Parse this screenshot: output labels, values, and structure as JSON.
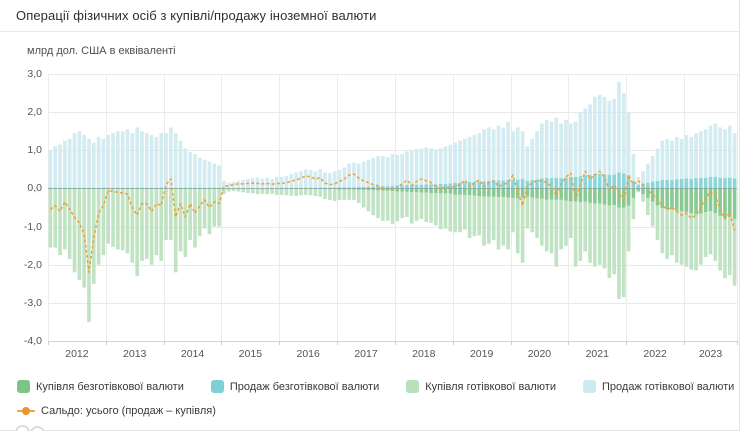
{
  "chart_data": {
    "type": "bar",
    "subtype": "stacked-bars-with-line",
    "title": "Операції фізичних осіб з купівлі/продажу іноземної валюти",
    "ylabel": "млрд дол. США в еквіваленті",
    "frequency": "monthly",
    "start_month": "2012-01",
    "end_month": "2023-11",
    "ylim": [
      -4.0,
      3.0
    ],
    "grid": true,
    "legend_position": "bottom",
    "y_tick_values": [
      3,
      2,
      1,
      0,
      -1,
      -2,
      -3,
      -4
    ],
    "y_tick_labels": [
      "3,0",
      "2,0",
      "1,0",
      "0,0",
      "-1,0",
      "-2,0",
      "-3,0",
      "-4,0"
    ],
    "x_year_labels": [
      "2012",
      "2013",
      "2014",
      "2015",
      "2016",
      "2017",
      "2018",
      "2019",
      "2020",
      "2021",
      "2022",
      "2023"
    ],
    "series": [
      {
        "name": "Купівля безготівкової валюти",
        "type": "bar",
        "stack": "purchase",
        "color": "#7cc487",
        "values": [
          -0.02,
          -0.02,
          -0.02,
          -0.02,
          -0.02,
          -0.02,
          -0.02,
          -0.02,
          -0.02,
          -0.02,
          -0.02,
          -0.02,
          -0.02,
          -0.02,
          -0.02,
          -0.02,
          -0.02,
          -0.02,
          -0.02,
          -0.02,
          -0.02,
          -0.02,
          -0.02,
          -0.02,
          -0.02,
          -0.02,
          -0.02,
          -0.02,
          -0.02,
          -0.02,
          -0.02,
          -0.02,
          -0.02,
          -0.02,
          -0.02,
          -0.02,
          -0.01,
          -0.01,
          -0.01,
          -0.01,
          -0.01,
          -0.01,
          -0.01,
          -0.01,
          -0.01,
          -0.01,
          -0.01,
          -0.01,
          -0.02,
          -0.02,
          -0.02,
          -0.02,
          -0.02,
          -0.02,
          -0.02,
          -0.02,
          -0.02,
          -0.02,
          -0.02,
          -0.02,
          -0.03,
          -0.03,
          -0.03,
          -0.03,
          -0.04,
          -0.04,
          -0.05,
          -0.05,
          -0.06,
          -0.06,
          -0.06,
          -0.07,
          -0.08,
          -0.08,
          -0.09,
          -0.1,
          -0.1,
          -0.11,
          -0.11,
          -0.12,
          -0.12,
          -0.13,
          -0.13,
          -0.14,
          -0.16,
          -0.16,
          -0.17,
          -0.18,
          -0.19,
          -0.2,
          -0.21,
          -0.22,
          -0.22,
          -0.23,
          -0.23,
          -0.24,
          -0.25,
          -0.26,
          -0.24,
          -0.22,
          -0.24,
          -0.26,
          -0.27,
          -0.3,
          -0.29,
          -0.3,
          -0.3,
          -0.32,
          -0.34,
          -0.34,
          -0.36,
          -0.35,
          -0.38,
          -0.4,
          -0.4,
          -0.42,
          -0.45,
          -0.44,
          -0.5,
          -0.5,
          -0.45,
          -0.25,
          -0.06,
          -0.15,
          -0.25,
          -0.35,
          -0.45,
          -0.52,
          -0.55,
          -0.55,
          -0.58,
          -0.6,
          -0.62,
          -0.65,
          -0.68,
          -0.66,
          -0.62,
          -0.6,
          -0.65,
          -0.72,
          -0.78,
          -0.75,
          -0.8
        ]
      },
      {
        "name": "Продаж безготівкової валюти",
        "type": "bar",
        "stack": "sale",
        "color": "#7fd0d4",
        "values": [
          0.02,
          0.02,
          0.02,
          0.02,
          0.02,
          0.02,
          0.02,
          0.02,
          0.02,
          0.02,
          0.02,
          0.02,
          0.02,
          0.02,
          0.02,
          0.02,
          0.02,
          0.02,
          0.02,
          0.02,
          0.02,
          0.02,
          0.02,
          0.02,
          0.02,
          0.02,
          0.02,
          0.02,
          0.02,
          0.02,
          0.02,
          0.02,
          0.02,
          0.02,
          0.02,
          0.02,
          0.01,
          0.01,
          0.01,
          0.01,
          0.01,
          0.01,
          0.01,
          0.01,
          0.01,
          0.01,
          0.01,
          0.01,
          0.02,
          0.02,
          0.02,
          0.02,
          0.02,
          0.02,
          0.02,
          0.02,
          0.02,
          0.02,
          0.02,
          0.02,
          0.03,
          0.03,
          0.03,
          0.03,
          0.04,
          0.04,
          0.05,
          0.05,
          0.06,
          0.06,
          0.06,
          0.07,
          0.08,
          0.08,
          0.09,
          0.09,
          0.1,
          0.1,
          0.11,
          0.11,
          0.11,
          0.12,
          0.12,
          0.13,
          0.15,
          0.15,
          0.16,
          0.17,
          0.18,
          0.18,
          0.19,
          0.2,
          0.2,
          0.21,
          0.21,
          0.22,
          0.22,
          0.23,
          0.25,
          0.2,
          0.22,
          0.24,
          0.26,
          0.28,
          0.27,
          0.28,
          0.27,
          0.28,
          0.3,
          0.3,
          0.32,
          0.34,
          0.35,
          0.38,
          0.38,
          0.37,
          0.36,
          0.37,
          0.42,
          0.4,
          0.35,
          0.2,
          0.1,
          0.12,
          0.15,
          0.18,
          0.2,
          0.22,
          0.23,
          0.22,
          0.24,
          0.25,
          0.26,
          0.25,
          0.27,
          0.28,
          0.28,
          0.3,
          0.3,
          0.28,
          0.27,
          0.28,
          0.26
        ]
      },
      {
        "name": "Купівля готівкової валюти",
        "type": "bar",
        "stack": "purchase",
        "color": "#b9e0bd",
        "values": [
          -1.53,
          -1.53,
          -1.73,
          -1.58,
          -1.83,
          -2.18,
          -2.38,
          -2.58,
          -3.48,
          -2.48,
          -1.98,
          -1.73,
          -1.43,
          -1.51,
          -1.58,
          -1.6,
          -1.68,
          -1.93,
          -2.28,
          -1.88,
          -1.83,
          -1.98,
          -1.73,
          -1.88,
          -1.33,
          -1.33,
          -2.18,
          -1.63,
          -1.78,
          -1.33,
          -1.53,
          -1.23,
          -1.03,
          -1.18,
          -0.98,
          -0.98,
          -0.14,
          -0.07,
          -0.06,
          -0.07,
          -0.09,
          -0.11,
          -0.12,
          -0.14,
          -0.13,
          -0.14,
          -0.13,
          -0.16,
          -0.15,
          -0.16,
          -0.17,
          -0.18,
          -0.16,
          -0.15,
          -0.16,
          -0.18,
          -0.2,
          -0.26,
          -0.28,
          -0.31,
          -0.27,
          -0.27,
          -0.27,
          -0.27,
          -0.34,
          -0.46,
          -0.55,
          -0.65,
          -0.72,
          -0.79,
          -0.79,
          -0.86,
          -0.78,
          -0.7,
          -0.66,
          -0.82,
          -0.75,
          -0.69,
          -0.77,
          -0.78,
          -0.85,
          -0.94,
          -0.92,
          -0.99,
          -0.99,
          -0.99,
          -0.91,
          -1.12,
          -1.06,
          -1.03,
          -1.29,
          -1.23,
          -1.13,
          -1.37,
          -1.27,
          -1.36,
          -0.9,
          -1.44,
          -1.71,
          -0.83,
          -0.91,
          -1.04,
          -1.23,
          -1.35,
          -1.41,
          -1.75,
          -1.3,
          -1.18,
          -0.96,
          -1.71,
          -1.54,
          -1.3,
          -1.57,
          -1.65,
          -1.6,
          -1.68,
          -1.9,
          -1.81,
          -2.4,
          -2.35,
          -1.2,
          -0.55,
          -0.04,
          -0.2,
          -0.45,
          -0.65,
          -0.9,
          -1.18,
          -1.3,
          -1.2,
          -1.37,
          -1.4,
          -1.43,
          -1.48,
          -1.47,
          -1.34,
          -1.18,
          -1.13,
          -1.25,
          -1.43,
          -1.57,
          -1.52,
          -1.75
        ]
      },
      {
        "name": "Продаж готівкової валюти",
        "type": "bar",
        "stack": "sale",
        "color": "#cdeaf0",
        "values": [
          0.98,
          1.08,
          1.13,
          1.23,
          1.28,
          1.43,
          1.48,
          1.38,
          1.28,
          1.18,
          1.33,
          1.28,
          1.38,
          1.43,
          1.48,
          1.48,
          1.53,
          1.43,
          1.58,
          1.48,
          1.43,
          1.38,
          1.33,
          1.43,
          1.43,
          1.58,
          1.43,
          1.23,
          1.03,
          0.93,
          0.88,
          0.78,
          0.73,
          0.68,
          0.63,
          0.58,
          0.19,
          0.14,
          0.16,
          0.19,
          0.21,
          0.24,
          0.26,
          0.27,
          0.25,
          0.27,
          0.24,
          0.29,
          0.28,
          0.31,
          0.36,
          0.4,
          0.43,
          0.48,
          0.46,
          0.43,
          0.48,
          0.4,
          0.38,
          0.43,
          0.45,
          0.52,
          0.62,
          0.65,
          0.61,
          0.66,
          0.7,
          0.75,
          0.79,
          0.79,
          0.76,
          0.83,
          0.8,
          0.82,
          0.88,
          0.91,
          0.93,
          0.95,
          0.97,
          0.94,
          0.91,
          0.93,
          0.98,
          1.02,
          1.05,
          1.1,
          1.14,
          1.18,
          1.22,
          1.27,
          1.36,
          1.4,
          1.35,
          1.44,
          1.39,
          1.53,
          1.28,
          1.37,
          1.25,
          0.9,
          1.08,
          1.26,
          1.44,
          1.52,
          1.48,
          1.57,
          1.43,
          1.52,
          1.4,
          1.45,
          1.68,
          1.76,
          1.85,
          2.02,
          2.07,
          2.03,
          1.94,
          1.98,
          2.38,
          2.1,
          1.65,
          0.7,
          0.2,
          0.33,
          0.5,
          0.67,
          0.85,
          1.03,
          1.07,
          1.03,
          1.11,
          1.05,
          1.14,
          1.1,
          1.18,
          1.22,
          1.27,
          1.35,
          1.4,
          1.32,
          1.28,
          1.37,
          1.19
        ]
      },
      {
        "name": "Сальдо: усього (продаж – купівля)",
        "type": "line",
        "dashed": true,
        "color": "#eda13a",
        "values": [
          -0.55,
          -0.45,
          -0.6,
          -0.35,
          -0.55,
          -0.75,
          -0.9,
          -1.2,
          -2.2,
          -1.3,
          -0.65,
          -0.45,
          -0.05,
          -0.08,
          -0.1,
          -0.12,
          -0.15,
          -0.5,
          -0.7,
          -0.4,
          -0.4,
          -0.6,
          -0.4,
          -0.45,
          0.1,
          0.25,
          -0.75,
          -0.4,
          -0.75,
          -0.4,
          -0.65,
          -0.45,
          -0.3,
          -0.5,
          -0.35,
          -0.4,
          0.05,
          0.07,
          0.1,
          0.12,
          0.12,
          0.13,
          0.14,
          0.13,
          0.12,
          0.13,
          0.11,
          0.13,
          0.13,
          0.15,
          0.19,
          0.22,
          0.27,
          0.33,
          0.3,
          0.25,
          0.28,
          0.14,
          0.1,
          0.12,
          0.18,
          0.25,
          0.35,
          0.38,
          0.27,
          0.2,
          0.15,
          0.1,
          0.07,
          0.0,
          -0.03,
          -0.03,
          0.02,
          0.12,
          0.22,
          0.08,
          0.18,
          0.25,
          0.2,
          0.15,
          0.05,
          -0.02,
          0.05,
          0.02,
          0.05,
          0.1,
          0.22,
          0.05,
          0.15,
          0.22,
          0.05,
          0.15,
          0.2,
          0.05,
          0.1,
          0.15,
          0.35,
          -0.1,
          -0.45,
          0.05,
          0.15,
          0.2,
          0.2,
          0.15,
          0.05,
          -0.2,
          0.1,
          0.3,
          0.4,
          -0.3,
          0.1,
          0.45,
          0.25,
          0.35,
          0.45,
          0.3,
          -0.05,
          0.1,
          -0.1,
          -0.35,
          0.35,
          0.1,
          0.2,
          0.1,
          -0.05,
          -0.15,
          -0.3,
          -0.45,
          -0.55,
          -0.5,
          -0.6,
          -0.7,
          -0.65,
          -0.78,
          -0.7,
          -0.5,
          -0.25,
          -0.08,
          -0.2,
          -0.55,
          -0.8,
          -0.62,
          -1.1
        ]
      }
    ]
  }
}
